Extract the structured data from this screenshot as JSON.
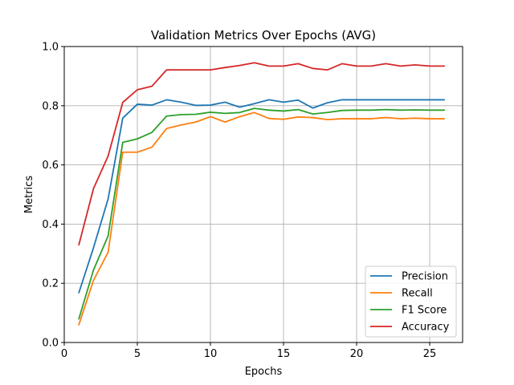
{
  "chart_data": {
    "type": "line",
    "title": "Validation Metrics Over Epochs (AVG)",
    "xlabel": "Epochs",
    "ylabel": "Metrics",
    "xlim": [
      0,
      27.25
    ],
    "ylim": [
      0,
      1.0
    ],
    "xticks": [
      0,
      5,
      10,
      15,
      20,
      25
    ],
    "yticks": [
      0.0,
      0.2,
      0.4,
      0.6,
      0.8,
      1.0
    ],
    "xtick_labels": [
      "0",
      "5",
      "10",
      "15",
      "20",
      "25"
    ],
    "ytick_labels": [
      "0.0",
      "0.2",
      "0.4",
      "0.6",
      "0.8",
      "1.0"
    ],
    "grid": true,
    "legend_position": "lower-right",
    "x": [
      1,
      2,
      3,
      4,
      5,
      6,
      7,
      8,
      9,
      10,
      11,
      12,
      13,
      14,
      15,
      16,
      17,
      18,
      19,
      20,
      21,
      22,
      23,
      24,
      25,
      26
    ],
    "series": [
      {
        "name": "Precision",
        "color": "#1f77b4",
        "values": [
          0.168,
          0.32,
          0.485,
          0.758,
          0.805,
          0.802,
          0.82,
          0.812,
          0.801,
          0.802,
          0.812,
          0.795,
          0.807,
          0.82,
          0.812,
          0.819,
          0.792,
          0.81,
          0.82,
          0.82,
          0.82,
          0.82,
          0.82,
          0.82,
          0.82,
          0.82
        ]
      },
      {
        "name": "Recall",
        "color": "#ff7f0e",
        "values": [
          0.06,
          0.21,
          0.305,
          0.643,
          0.643,
          0.66,
          0.723,
          0.735,
          0.745,
          0.763,
          0.745,
          0.763,
          0.777,
          0.757,
          0.754,
          0.762,
          0.76,
          0.753,
          0.756,
          0.756,
          0.756,
          0.76,
          0.756,
          0.758,
          0.756,
          0.756
        ]
      },
      {
        "name": "F1 Score",
        "color": "#2ca02c",
        "values": [
          0.08,
          0.245,
          0.36,
          0.676,
          0.688,
          0.71,
          0.765,
          0.77,
          0.771,
          0.778,
          0.774,
          0.777,
          0.791,
          0.785,
          0.782,
          0.787,
          0.772,
          0.777,
          0.784,
          0.785,
          0.785,
          0.787,
          0.785,
          0.786,
          0.785,
          0.785
        ]
      },
      {
        "name": "Accuracy",
        "color": "#d62728",
        "values": [
          0.33,
          0.52,
          0.63,
          0.811,
          0.854,
          0.866,
          0.921,
          0.921,
          0.921,
          0.921,
          0.929,
          0.936,
          0.945,
          0.934,
          0.934,
          0.942,
          0.926,
          0.921,
          0.942,
          0.934,
          0.934,
          0.942,
          0.934,
          0.938,
          0.934,
          0.934
        ]
      }
    ]
  }
}
